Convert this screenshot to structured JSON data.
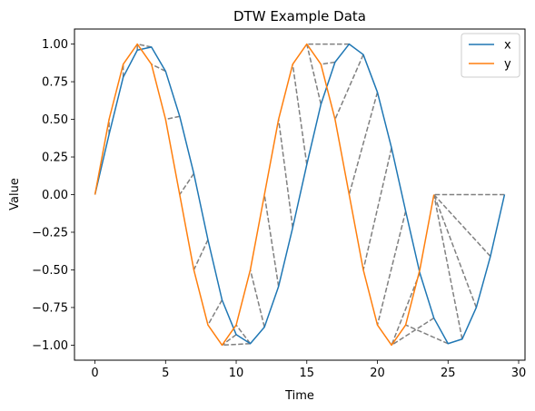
{
  "chart_data": {
    "type": "line",
    "title": "DTW Example Data",
    "xlabel": "Time",
    "ylabel": "Value",
    "xlim": [
      -1.45,
      30.45
    ],
    "ylim": [
      -1.1,
      1.1
    ],
    "xticks": [
      0,
      5,
      10,
      15,
      20,
      25,
      30
    ],
    "yticks": [
      -1.0,
      -0.75,
      -0.5,
      -0.25,
      0.0,
      0.25,
      0.5,
      0.75,
      1.0
    ],
    "xtick_labels": [
      "0",
      "5",
      "10",
      "15",
      "20",
      "25",
      "30"
    ],
    "ytick_labels": [
      "−1.00",
      "−0.75",
      "−0.50",
      "−0.25",
      "0.00",
      "0.25",
      "0.50",
      "0.75",
      "1.00"
    ],
    "grid": false,
    "legend_position": "upper right",
    "series": [
      {
        "name": "x",
        "color": "#1f77b4",
        "x": [
          0,
          1,
          2,
          3,
          4,
          5,
          6,
          7,
          8,
          9,
          10,
          11,
          12,
          13,
          14,
          15,
          16,
          17,
          18,
          19,
          20,
          21,
          22,
          23,
          24,
          25,
          26,
          27,
          28,
          29
        ],
        "values": [
          0.0,
          0.4,
          0.78,
          0.96,
          0.98,
          0.82,
          0.52,
          0.14,
          -0.3,
          -0.7,
          -0.93,
          -0.99,
          -0.88,
          -0.61,
          -0.22,
          0.2,
          0.6,
          0.88,
          1.0,
          0.93,
          0.68,
          0.31,
          -0.11,
          -0.52,
          -0.82,
          -0.99,
          -0.96,
          -0.75,
          -0.41,
          0.0
        ]
      },
      {
        "name": "y",
        "color": "#ff7f0e",
        "x": [
          0,
          1,
          2,
          3,
          4,
          5,
          6,
          7,
          8,
          9,
          10,
          11,
          12,
          13,
          14,
          15,
          16,
          17,
          18,
          19,
          20,
          21,
          22,
          23,
          24
        ],
        "values": [
          0.0,
          0.5,
          0.866,
          1.0,
          0.866,
          0.5,
          0.0,
          -0.5,
          -0.866,
          -1.0,
          -0.866,
          -0.5,
          0.0,
          0.5,
          0.866,
          1.0,
          0.866,
          0.5,
          0.0,
          -0.5,
          -0.866,
          -1.0,
          -0.866,
          -0.5,
          0.0
        ]
      }
    ],
    "alignment_lines": {
      "color": "#808080",
      "style": "dashed",
      "pairs": [
        [
          [
            0,
            0.0
          ],
          [
            0,
            0.0
          ]
        ],
        [
          [
            1,
            0.4
          ],
          [
            1,
            0.5
          ]
        ],
        [
          [
            2,
            0.78
          ],
          [
            2,
            0.866
          ]
        ],
        [
          [
            3,
            0.96
          ],
          [
            3,
            1.0
          ]
        ],
        [
          [
            4,
            0.98
          ],
          [
            3,
            1.0
          ]
        ],
        [
          [
            5,
            0.82
          ],
          [
            4,
            0.866
          ]
        ],
        [
          [
            6,
            0.52
          ],
          [
            5,
            0.5
          ]
        ],
        [
          [
            7,
            0.14
          ],
          [
            6,
            0.0
          ]
        ],
        [
          [
            8,
            -0.3
          ],
          [
            7,
            -0.5
          ]
        ],
        [
          [
            9,
            -0.7
          ],
          [
            8,
            -0.866
          ]
        ],
        [
          [
            10,
            -0.93
          ],
          [
            9,
            -1.0
          ]
        ],
        [
          [
            11,
            -0.99
          ],
          [
            9,
            -1.0
          ]
        ],
        [
          [
            11,
            -0.99
          ],
          [
            10,
            -0.866
          ]
        ],
        [
          [
            12,
            -0.88
          ],
          [
            11,
            -0.5
          ]
        ],
        [
          [
            13,
            -0.61
          ],
          [
            12,
            0.0
          ]
        ],
        [
          [
            14,
            -0.22
          ],
          [
            13,
            0.5
          ]
        ],
        [
          [
            15,
            0.2
          ],
          [
            14,
            0.866
          ]
        ],
        [
          [
            16,
            0.6
          ],
          [
            15,
            1.0
          ]
        ],
        [
          [
            17,
            0.88
          ],
          [
            16,
            0.866
          ]
        ],
        [
          [
            18,
            1.0
          ],
          [
            15,
            1.0
          ]
        ],
        [
          [
            19,
            0.93
          ],
          [
            17,
            0.5
          ]
        ],
        [
          [
            20,
            0.68
          ],
          [
            18,
            0.0
          ]
        ],
        [
          [
            21,
            0.31
          ],
          [
            19,
            -0.5
          ]
        ],
        [
          [
            22,
            -0.11
          ],
          [
            20,
            -0.866
          ]
        ],
        [
          [
            23,
            -0.52
          ],
          [
            21,
            -1.0
          ]
        ],
        [
          [
            24,
            -0.82
          ],
          [
            21,
            -1.0
          ]
        ],
        [
          [
            25,
            -0.99
          ],
          [
            22,
            -0.866
          ]
        ],
        [
          [
            26,
            -0.96
          ],
          [
            24,
            0.0
          ]
        ],
        [
          [
            27,
            -0.75
          ],
          [
            24,
            0.0
          ]
        ],
        [
          [
            28,
            -0.41
          ],
          [
            24,
            0.0
          ]
        ],
        [
          [
            29,
            0.0
          ],
          [
            24,
            0.0
          ]
        ]
      ]
    }
  }
}
